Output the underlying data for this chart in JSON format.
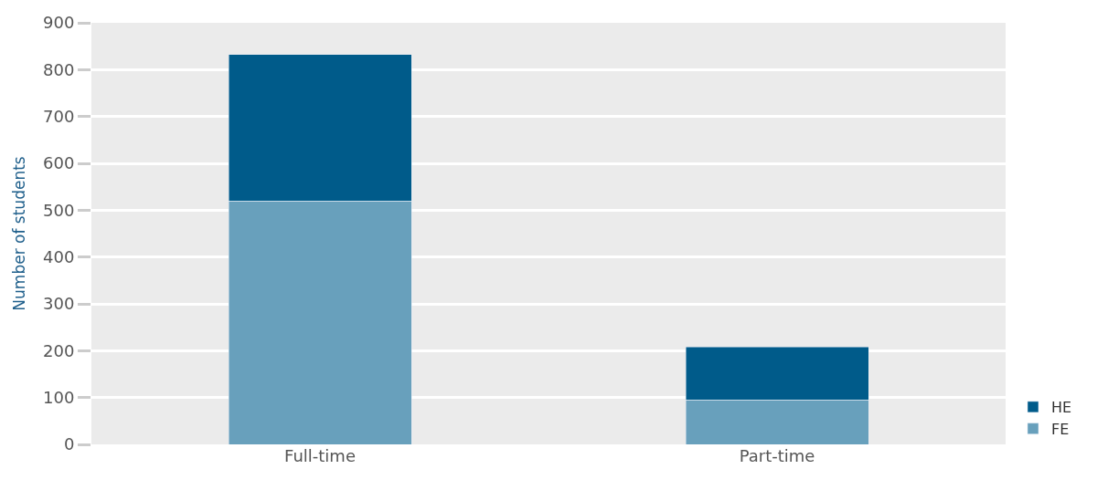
{
  "chart_data": {
    "type": "bar",
    "stacked": true,
    "categories": [
      "Full-time",
      "Part-time"
    ],
    "ylabel": "Number of students",
    "ylim": [
      0,
      900
    ],
    "yticks": [
      0,
      100,
      200,
      300,
      400,
      500,
      600,
      700,
      800,
      900
    ],
    "grid": "y",
    "legend": "bottom right",
    "series": [
      {
        "name": "FE",
        "color": "#68a0bc",
        "values": [
          520,
          95
        ]
      },
      {
        "name": "HE",
        "color": "#005b8a",
        "values": [
          312,
          113
        ]
      }
    ]
  }
}
